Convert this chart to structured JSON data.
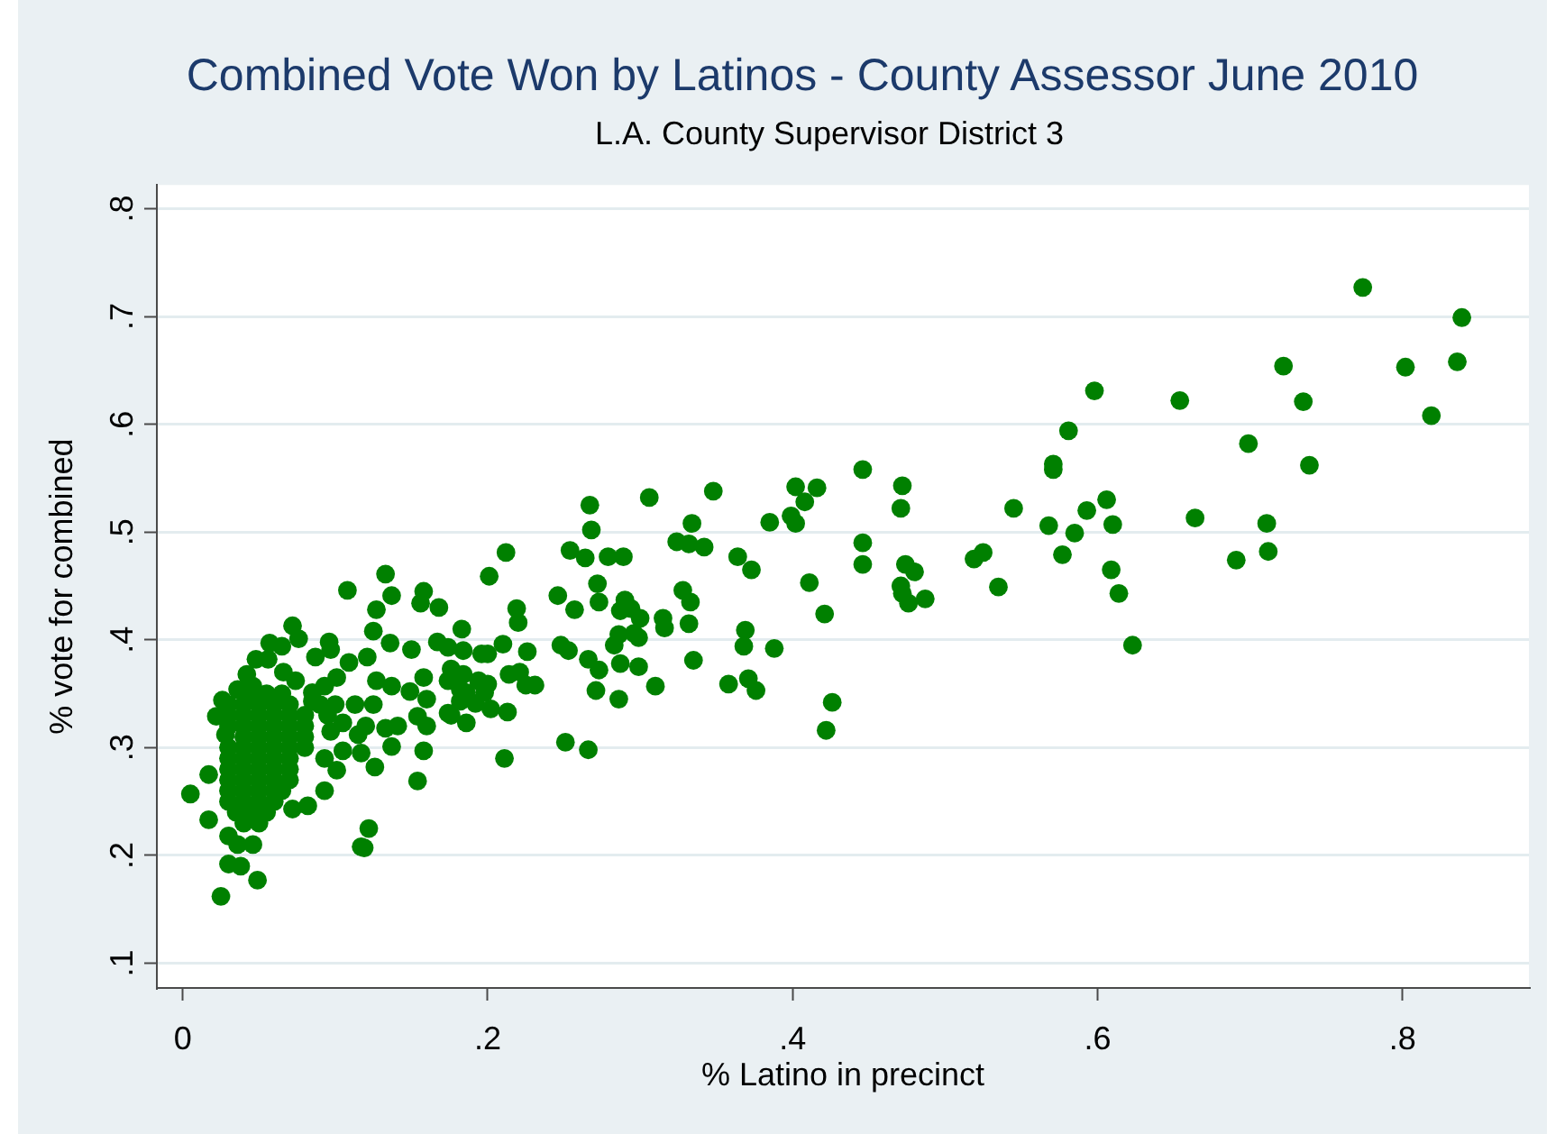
{
  "chart_data": {
    "type": "scatter",
    "title": "Combined Vote Won by Latinos - County Assessor June 2010",
    "subtitle": "L.A. County Supervisor District 3",
    "xlabel": "% Latino in precinct",
    "ylabel": "% vote for combined",
    "color": "#008000",
    "marker": "circle",
    "grid": "y",
    "xlim": [
      -0.017,
      0.883
    ],
    "ylim": [
      0.077,
      0.822
    ],
    "xticks": [
      0,
      {
        "value": 0.2,
        "label": ".2"
      },
      {
        "value": 0.4,
        "label": ".4"
      },
      {
        "value": 0.6,
        "label": ".6"
      },
      {
        "value": 0.8,
        "label": ".8"
      }
    ],
    "yticks": [
      {
        "value": 0.1,
        "label": ".1"
      },
      {
        "value": 0.2,
        "label": ".2"
      },
      {
        "value": 0.3,
        "label": ".3"
      },
      {
        "value": 0.4,
        "label": ".4"
      },
      {
        "value": 0.5,
        "label": ".5"
      },
      {
        "value": 0.6,
        "label": ".6"
      },
      {
        "value": 0.7,
        "label": ".7"
      },
      {
        "value": 0.8,
        "label": ".8"
      }
    ],
    "x": [
      0.774,
      0.839,
      0.802,
      0.836,
      0.819,
      0.722,
      0.735,
      0.739,
      0.699,
      0.654,
      0.598,
      0.581,
      0.571,
      0.571,
      0.545,
      0.568,
      0.585,
      0.593,
      0.606,
      0.61,
      0.577,
      0.609,
      0.614,
      0.623,
      0.664,
      0.711,
      0.691,
      0.712,
      0.519,
      0.525,
      0.535,
      0.472,
      0.471,
      0.474,
      0.48,
      0.471,
      0.472,
      0.476,
      0.487,
      0.446,
      0.446,
      0.446,
      0.402,
      0.416,
      0.408,
      0.399,
      0.402,
      0.385,
      0.348,
      0.306,
      0.267,
      0.268,
      0.334,
      0.324,
      0.332,
      0.342,
      0.364,
      0.373,
      0.411,
      0.421,
      0.426,
      0.422,
      0.369,
      0.368,
      0.388,
      0.358,
      0.371,
      0.376,
      0.328,
      0.333,
      0.332,
      0.335,
      0.315,
      0.316,
      0.31,
      0.254,
      0.264,
      0.279,
      0.289,
      0.272,
      0.273,
      0.246,
      0.257,
      0.29,
      0.287,
      0.294,
      0.3,
      0.286,
      0.296,
      0.299,
      0.283,
      0.287,
      0.299,
      0.266,
      0.273,
      0.271,
      0.286,
      0.248,
      0.253,
      0.251,
      0.266,
      0.212,
      0.201,
      0.219,
      0.22,
      0.21,
      0.226,
      0.183,
      0.214,
      0.221,
      0.225,
      0.231,
      0.202,
      0.213,
      0.211,
      0.184,
      0.196,
      0.2,
      0.176,
      0.184,
      0.194,
      0.2,
      0.186,
      0.198,
      0.182,
      0.192,
      0.176,
      0.186,
      0.133,
      0.108,
      0.137,
      0.127,
      0.158,
      0.156,
      0.168,
      0.072,
      0.076,
      0.125,
      0.096,
      0.097,
      0.057,
      0.065,
      0.048,
      0.056,
      0.136,
      0.15,
      0.167,
      0.174,
      0.087,
      0.109,
      0.121,
      0.127,
      0.137,
      0.149,
      0.158,
      0.16,
      0.154,
      0.16,
      0.174,
      0.182,
      0.174,
      0.026,
      0.022,
      0.028,
      0.017,
      0.005,
      0.017,
      0.03,
      0.036,
      0.046,
      0.03,
      0.038,
      0.049,
      0.025,
      0.122,
      0.117,
      0.119,
      0.154,
      0.158,
      0.093,
      0.082,
      0.072,
      0.126,
      0.137,
      0.117,
      0.105,
      0.101,
      0.093,
      0.08,
      0.085,
      0.097,
      0.105,
      0.115,
      0.133,
      0.141,
      0.113,
      0.125,
      0.093,
      0.101,
      0.085,
      0.074,
      0.066,
      0.046,
      0.036,
      0.042,
      0.045,
      0.055,
      0.065,
      0.03,
      0.04,
      0.05,
      0.06,
      0.07,
      0.09,
      0.1,
      0.03,
      0.04,
      0.05,
      0.06,
      0.07,
      0.08,
      0.095,
      0.03,
      0.04,
      0.05,
      0.06,
      0.07,
      0.12,
      0.04,
      0.05,
      0.06,
      0.07,
      0.08,
      0.03,
      0.04,
      0.05,
      0.06,
      0.07,
      0.08,
      0.03,
      0.04,
      0.05,
      0.06,
      0.07,
      0.03,
      0.04,
      0.05,
      0.06,
      0.07,
      0.03,
      0.04,
      0.05,
      0.06,
      0.07,
      0.03,
      0.04,
      0.05,
      0.06,
      0.065,
      0.03,
      0.04,
      0.05,
      0.06,
      0.035,
      0.045,
      0.055,
      0.04,
      0.05
    ],
    "values": [
      0.727,
      0.699,
      0.653,
      0.658,
      0.608,
      0.654,
      0.621,
      0.562,
      0.582,
      0.622,
      0.631,
      0.594,
      0.563,
      0.558,
      0.522,
      0.506,
      0.499,
      0.52,
      0.53,
      0.507,
      0.479,
      0.465,
      0.443,
      0.395,
      0.513,
      0.508,
      0.474,
      0.482,
      0.475,
      0.481,
      0.449,
      0.543,
      0.522,
      0.47,
      0.463,
      0.45,
      0.443,
      0.434,
      0.438,
      0.558,
      0.49,
      0.47,
      0.542,
      0.541,
      0.528,
      0.515,
      0.508,
      0.509,
      0.538,
      0.532,
      0.525,
      0.502,
      0.508,
      0.491,
      0.489,
      0.486,
      0.477,
      0.465,
      0.453,
      0.424,
      0.342,
      0.316,
      0.409,
      0.394,
      0.392,
      0.359,
      0.364,
      0.353,
      0.446,
      0.435,
      0.415,
      0.381,
      0.42,
      0.411,
      0.357,
      0.483,
      0.476,
      0.477,
      0.477,
      0.452,
      0.435,
      0.441,
      0.428,
      0.437,
      0.427,
      0.429,
      0.42,
      0.405,
      0.406,
      0.402,
      0.395,
      0.378,
      0.375,
      0.382,
      0.372,
      0.353,
      0.345,
      0.395,
      0.39,
      0.305,
      0.298,
      0.481,
      0.459,
      0.429,
      0.416,
      0.396,
      0.389,
      0.41,
      0.368,
      0.37,
      0.358,
      0.358,
      0.336,
      0.333,
      0.29,
      0.39,
      0.387,
      0.387,
      0.373,
      0.368,
      0.362,
      0.359,
      0.351,
      0.351,
      0.343,
      0.341,
      0.33,
      0.323,
      0.461,
      0.446,
      0.441,
      0.428,
      0.445,
      0.434,
      0.43,
      0.413,
      0.401,
      0.408,
      0.398,
      0.391,
      0.397,
      0.394,
      0.382,
      0.382,
      0.397,
      0.391,
      0.398,
      0.393,
      0.384,
      0.379,
      0.384,
      0.362,
      0.357,
      0.352,
      0.365,
      0.345,
      0.329,
      0.32,
      0.362,
      0.354,
      0.332,
      0.344,
      0.329,
      0.312,
      0.275,
      0.257,
      0.233,
      0.218,
      0.21,
      0.21,
      0.192,
      0.19,
      0.177,
      0.162,
      0.225,
      0.208,
      0.207,
      0.269,
      0.297,
      0.26,
      0.246,
      0.243,
      0.282,
      0.301,
      0.295,
      0.297,
      0.279,
      0.29,
      0.32,
      0.343,
      0.315,
      0.323,
      0.312,
      0.318,
      0.32,
      0.34,
      0.34,
      0.357,
      0.365,
      0.351,
      0.362,
      0.37,
      0.357,
      0.354,
      0.368,
      0.35,
      0.35,
      0.35,
      0.34,
      0.34,
      0.34,
      0.34,
      0.34,
      0.34,
      0.34,
      0.33,
      0.33,
      0.33,
      0.33,
      0.33,
      0.33,
      0.33,
      0.32,
      0.32,
      0.32,
      0.32,
      0.32,
      0.32,
      0.31,
      0.31,
      0.31,
      0.31,
      0.31,
      0.3,
      0.3,
      0.3,
      0.3,
      0.3,
      0.3,
      0.29,
      0.29,
      0.29,
      0.29,
      0.29,
      0.28,
      0.28,
      0.28,
      0.28,
      0.28,
      0.27,
      0.27,
      0.27,
      0.27,
      0.27,
      0.26,
      0.26,
      0.26,
      0.26,
      0.26,
      0.25,
      0.25,
      0.25,
      0.25,
      0.24,
      0.24,
      0.24,
      0.23,
      0.23
    ]
  }
}
